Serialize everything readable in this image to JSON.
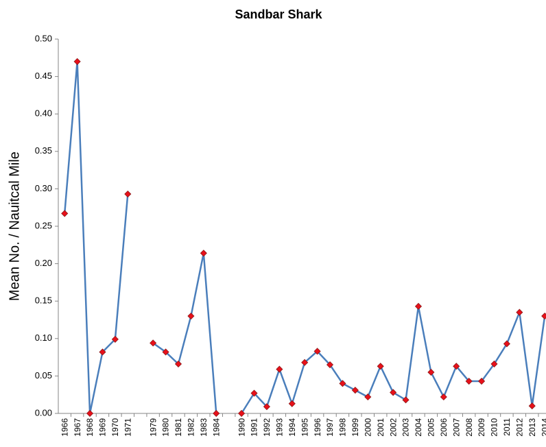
{
  "chart_data": {
    "type": "line",
    "title": "Sandbar Shark",
    "y_label": "Mean No. / Nauitcal Mile",
    "categories": [
      "1966",
      "1967",
      "1968",
      "1969",
      "1970",
      "1971",
      null,
      "1979",
      "1980",
      "1981",
      "1982",
      "1983",
      "1984",
      null,
      "1990",
      "1991",
      "1992",
      "1993",
      "1994",
      "1995",
      "1996",
      "1997",
      "1998",
      "1999",
      "2000",
      "2001",
      "2002",
      "2003",
      "2004",
      "2005",
      "2006",
      "2007",
      "2008",
      "2009",
      "2010",
      "2011",
      "2012",
      "2013",
      "2014"
    ],
    "series": [
      {
        "color": "#4a7ebb",
        "marker_color": "#e8101a",
        "values": [
          0.267,
          0.47,
          0,
          0.082,
          0.099,
          0.293,
          null,
          0.094,
          0.082,
          0.066,
          0.13,
          0.214,
          0,
          null,
          0,
          0.027,
          0.009,
          0.059,
          0.013,
          0.068,
          0.083,
          0.065,
          0.04,
          0.031,
          0.022,
          0.063,
          0.028,
          0.018,
          0.143,
          0.055,
          0.022,
          0.063,
          0.043,
          0.043,
          0.066,
          0.093,
          0.135,
          0.01,
          0.13
        ]
      }
    ],
    "ylim": [
      0,
      0.5
    ],
    "yticks": [
      {
        "value": 0,
        "label": "0.00"
      },
      {
        "value": 0.05,
        "label": "0.05"
      },
      {
        "value": 0.1,
        "label": "0.10"
      },
      {
        "value": 0.15,
        "label": "0.15"
      },
      {
        "value": 0.2,
        "label": "0.20"
      },
      {
        "value": 0.25,
        "label": "0.25"
      },
      {
        "value": 0.3,
        "label": "0.30"
      },
      {
        "value": 0.35,
        "label": "0.35"
      },
      {
        "value": 0.4,
        "label": "0.40"
      },
      {
        "value": 0.45,
        "label": "0.45"
      },
      {
        "value": 0.5,
        "label": "0.50"
      }
    ]
  }
}
